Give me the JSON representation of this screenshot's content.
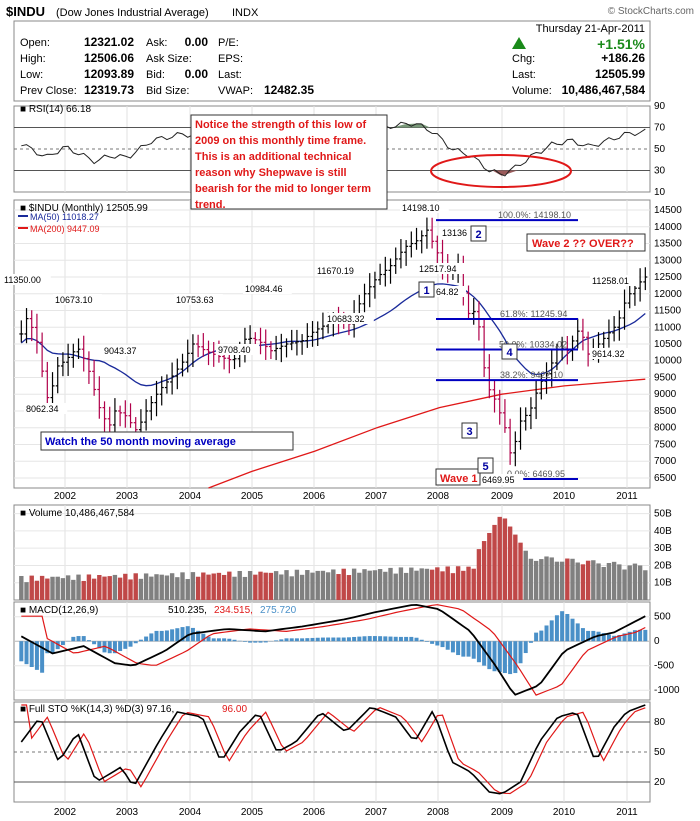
{
  "header": {
    "symbol": "$INDU",
    "name": "(Dow Jones Industrial Average)",
    "exchange": "INDX",
    "watermark": "© StockCharts.com",
    "date": "Thursday  21-Apr-2011",
    "change_pct": "+1.51%",
    "fields_left": [
      {
        "label": "Open:",
        "value": "12321.02"
      },
      {
        "label": "High:",
        "value": "12506.06"
      },
      {
        "label": "Low:",
        "value": "12093.89"
      },
      {
        "label": "Prev Close:",
        "value": "12319.73"
      }
    ],
    "fields_mid": [
      {
        "label": "Ask:",
        "value": "0.00"
      },
      {
        "label": "Ask Size:",
        "value": ""
      },
      {
        "label": "Bid:",
        "value": "0.00"
      },
      {
        "label": "Bid Size:",
        "value": ""
      }
    ],
    "fields_pe": [
      {
        "label": "P/E:",
        "value": ""
      },
      {
        "label": "EPS:",
        "value": ""
      },
      {
        "label": "Last:",
        "value": ""
      },
      {
        "label": "VWAP:",
        "value": "12482.35"
      }
    ],
    "fields_right": [
      {
        "label": "Chg:",
        "value": "+186.26"
      },
      {
        "label": "Last:",
        "value": "12505.99"
      },
      {
        "label": "Volume:",
        "value": "10,486,467,584"
      }
    ]
  },
  "colors": {
    "up": "#000000",
    "down": "#b0004a",
    "ma50": "#1a2a9a",
    "ma200": "#e01818",
    "vol_up": "#4a90c8",
    "vol_down": "#c04848",
    "vol_grey": "#808080",
    "annot_red": "#e01818",
    "fib_blue": "#0000c0"
  },
  "chart_data": [
    {
      "type": "line",
      "title": "RSI(14) 66.18",
      "ylim": [
        10,
        90
      ],
      "yticks": [
        "90",
        "70",
        "50",
        "30",
        "10"
      ]
    },
    {
      "type": "ohlc",
      "title": "$INDU (Monthly) 12505.99",
      "legend": [
        "MA(50) 11018.27",
        "MA(200) 9447.09"
      ],
      "ylim": [
        6200,
        14800
      ],
      "yticks": [
        "14500",
        "14000",
        "13500",
        "13000",
        "12500",
        "12000",
        "11500",
        "11000",
        "10500",
        "10000",
        "9500",
        "9000",
        "8500",
        "8000",
        "7500",
        "7000",
        "6500"
      ],
      "x_labels": [
        "2002",
        "2003",
        "2004",
        "2005",
        "2006",
        "2007",
        "2008",
        "2009",
        "2010",
        "2011"
      ],
      "price_labels": [
        "11350.00",
        "10673.10",
        "10753.63",
        "10984.46",
        "11670.19",
        "14198.10",
        "13136",
        "12517.94",
        "10683.32",
        "9708.40",
        "9043.37",
        "8062.34",
        "11258.01",
        "9614.32",
        "6469.95",
        "64.82"
      ],
      "fib_labels": [
        "100.0%: 14198.10",
        "61.8%: 11245.94",
        "50.0%: 10334.02",
        "38.2%: 9422.10",
        "0.0%: 6469.95"
      ],
      "wave_labels": [
        "1",
        "2",
        "3",
        "4",
        "5"
      ],
      "wave1": "Wave 1",
      "wave2": "Wave 2 ?? OVER??",
      "notes": {
        "box": "Notice the strength of this low of 2009 on this monthly time frame. This is an additional technical reason why Shepwave is still bearish for the mid to longer term trend.",
        "ma_note": "Watch the 50 month moving average"
      }
    },
    {
      "type": "bar",
      "title": "Volume 10,486,467,584",
      "yticks": [
        "50B",
        "40B",
        "30B",
        "20B",
        "10B"
      ],
      "ylim": [
        0,
        55
      ]
    },
    {
      "type": "line",
      "title": "MACD(12,26,9)",
      "values_legend": [
        "510.235",
        "234.515",
        "275.720"
      ],
      "yticks": [
        "500",
        "0",
        "-500",
        "-1000"
      ],
      "ylim": [
        -1200,
        800
      ]
    },
    {
      "type": "line",
      "title": "Full STO %K(14,3) %D(3) 97.16,",
      "values_legend": [
        "96.00"
      ],
      "yticks": [
        "80",
        "50",
        "20"
      ],
      "ylim": [
        0,
        100
      ],
      "x_labels": [
        "2002",
        "2003",
        "2004",
        "2005",
        "2006",
        "2007",
        "2008",
        "2009",
        "2010",
        "2011"
      ]
    }
  ]
}
